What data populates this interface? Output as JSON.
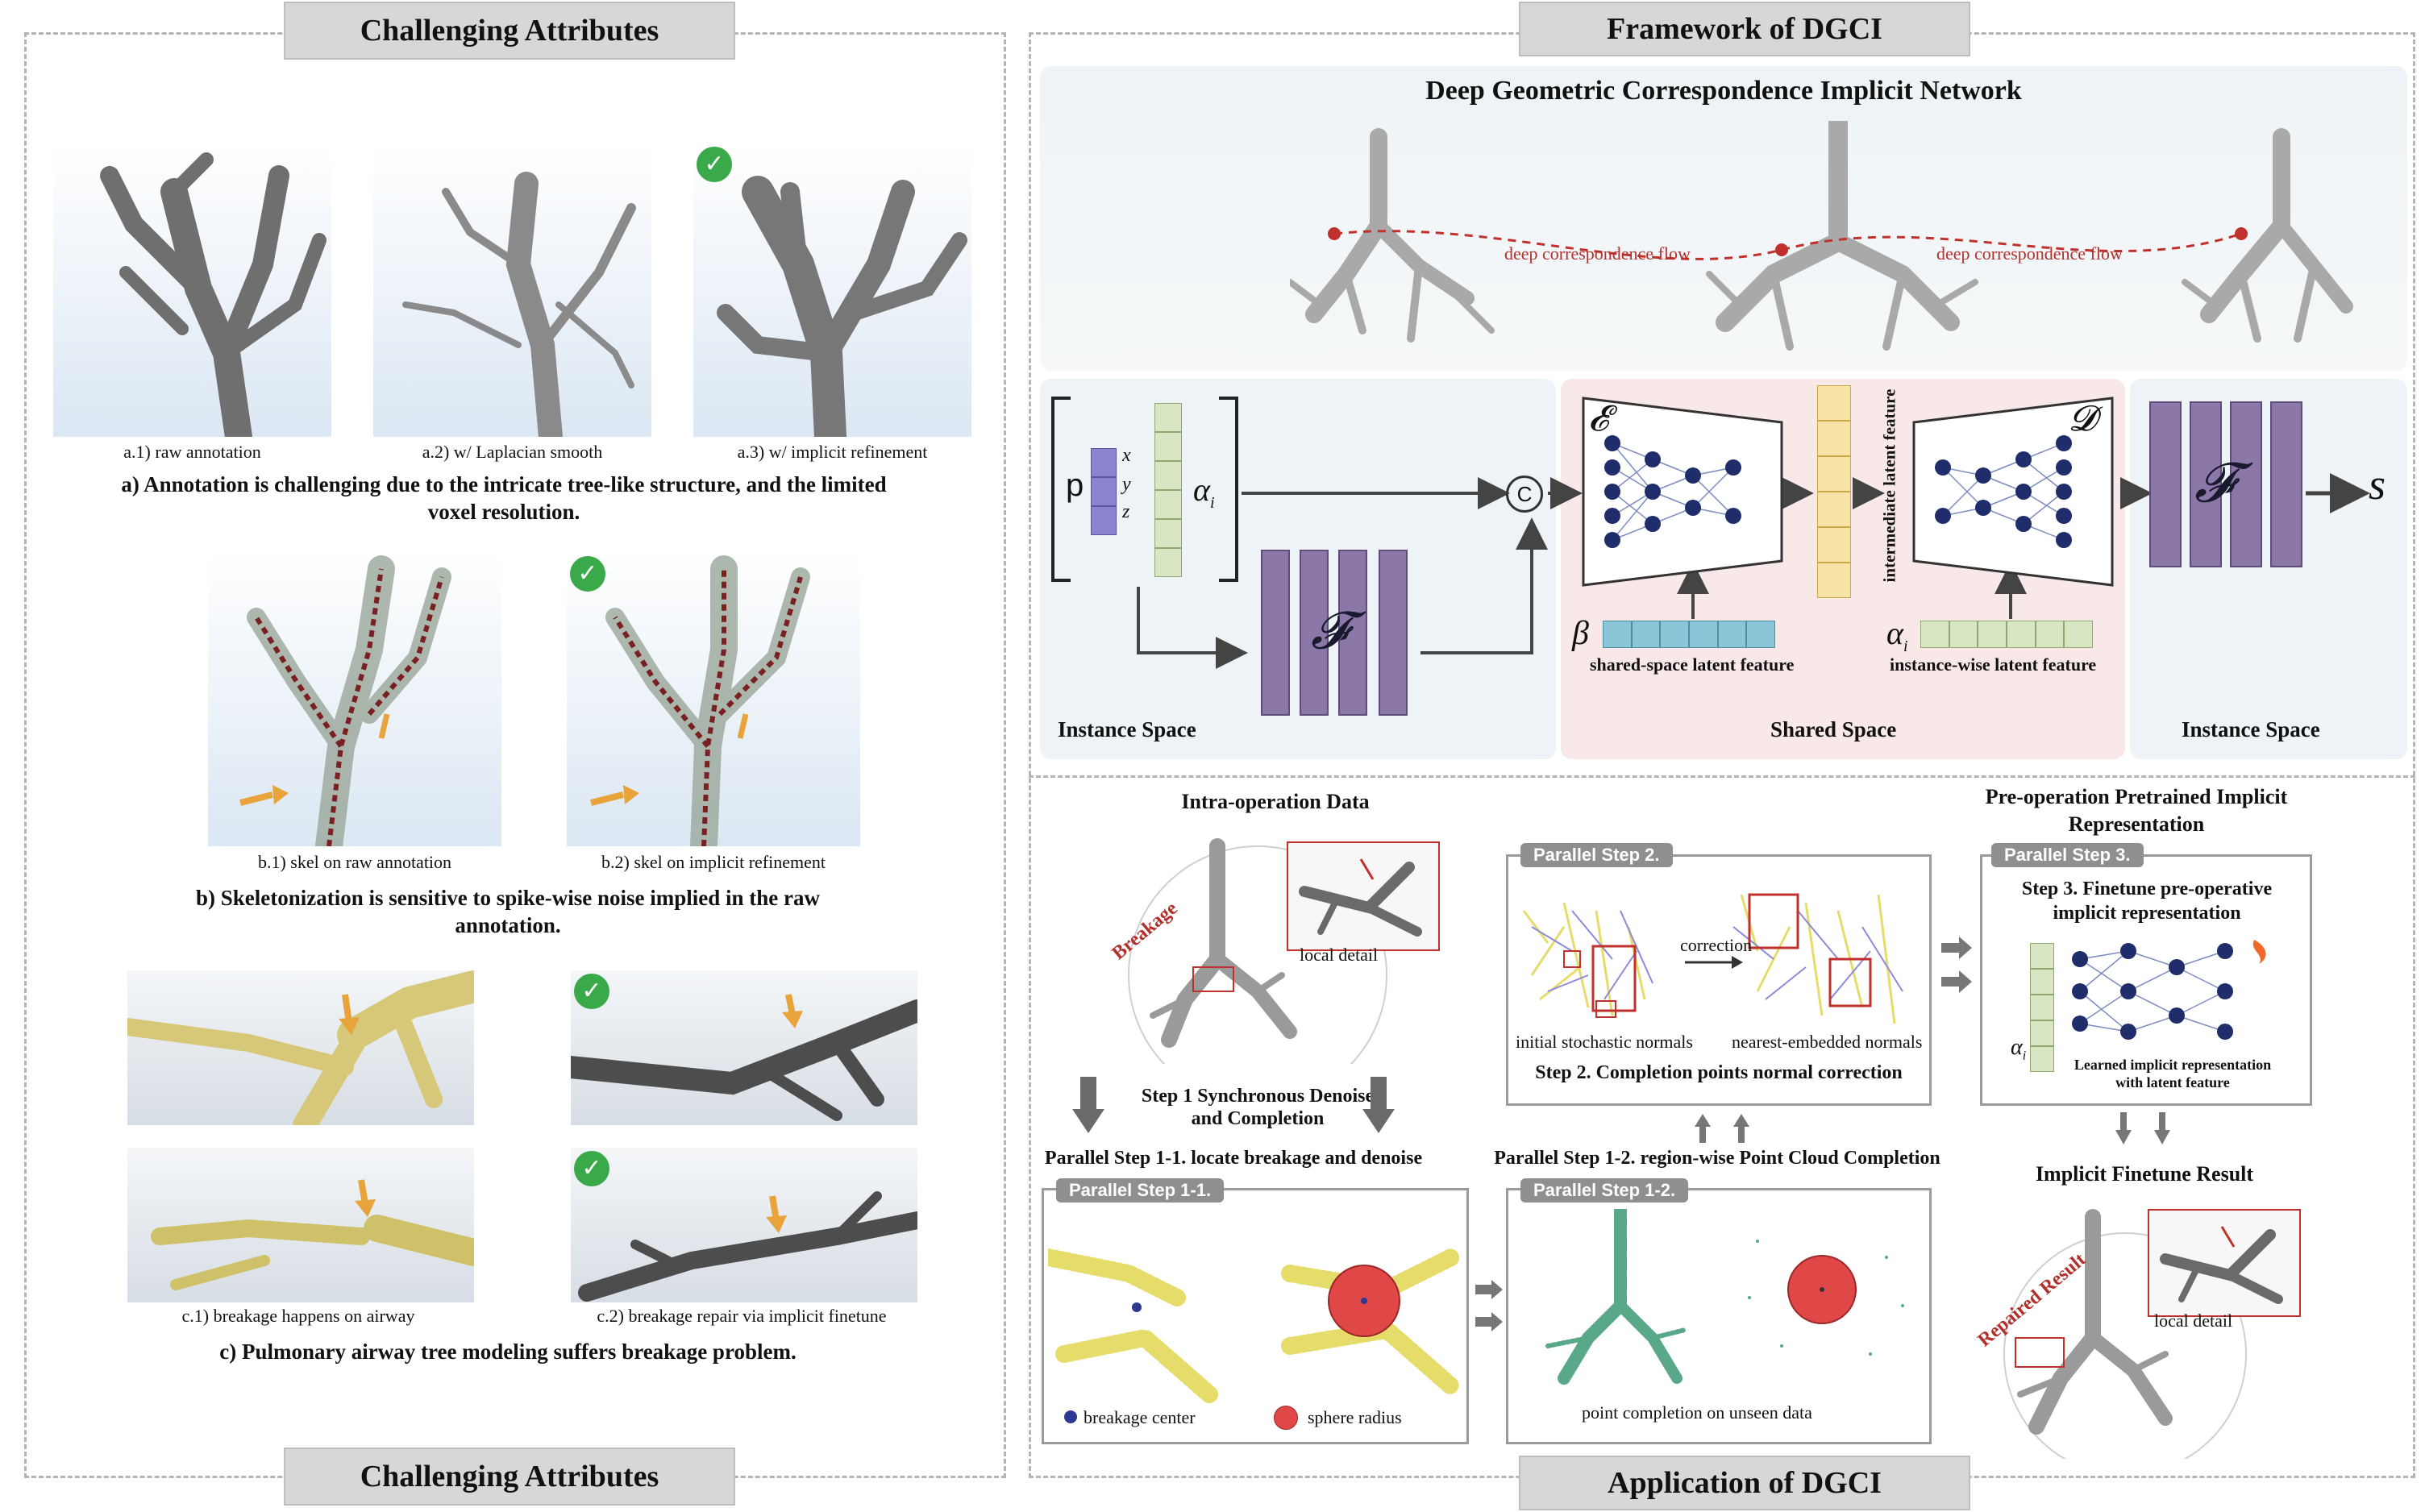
{
  "left": {
    "banner_top": "Challenging Attributes",
    "banner_bottom": "Challenging Attributes",
    "a": {
      "cap1": "a.1) raw annotation",
      "cap2": "a.2) w/ Laplacian smooth",
      "cap3": "a.3) w/ implicit refinement",
      "summary": "a) Annotation is challenging due to the intricate tree-like structure, and the limited voxel resolution."
    },
    "b": {
      "cap1": "b.1) skel on raw annotation",
      "cap2": "b.2) skel on implicit refinement",
      "summary": "b) Skeletonization is sensitive to spike-wise noise implied in the raw annotation."
    },
    "c": {
      "cap1": "c.1) breakage happens on airway",
      "cap2": "c.2) breakage repair via implicit finetune",
      "summary": "c) Pulmonary airway tree modeling suffers breakage problem."
    }
  },
  "framework": {
    "banner": "Framework of DGCI",
    "title": "Deep Geometric Correspondence Implicit Network",
    "flow_left": "deep correspondence flow",
    "flow_right": "deep correspondence flow",
    "p": "p",
    "x": "x",
    "y": "y",
    "z": "z",
    "alpha": "α",
    "alpha_sub": "i",
    "concat": "C",
    "F": "𝓕",
    "E": "𝓔",
    "D": "𝓓",
    "s": "s",
    "beta": "β",
    "shared_latent": "shared-space latent feature",
    "instance_latent": "instance-wise latent feature",
    "intermediate": "intermediate latent feature",
    "instance_space_left": "Instance Space",
    "shared_space": "Shared Space",
    "instance_space_right": "Instance Space"
  },
  "application": {
    "banner": "Application of DGCI",
    "intra_title": "Intra-operation Data",
    "breakage": "Breakage",
    "local_detail": "local detail",
    "step1": "Step 1 Synchronous Denoise and Completion",
    "ps11_title": "Parallel Step 1-1. locate breakage and denoise",
    "ps11_tag": "Parallel Step 1-1.",
    "breakage_center": "breakage center",
    "sphere_radius": "sphere radius",
    "ps2_tag": "Parallel Step 2.",
    "correction": "correction",
    "initial_normals": "initial stochastic normals",
    "nearest_normals": "nearest-embedded normals",
    "step2": "Step 2. Completion points normal correction",
    "ps12_title": "Parallel Step 1-2. region-wise Point Cloud Completion",
    "ps12_tag": "Parallel Step 1-2.",
    "point_completion": "point completion on unseen data",
    "pre_title": "Pre-operation Pretrained Implicit Representation",
    "ps3_tag": "Parallel Step 3.",
    "step3": "Step 3. Finetune pre-operative implicit representation",
    "learned": "Learned implicit representation with latent feature",
    "alpha": "α",
    "alpha_sub": "i",
    "finetune_result": "Implicit Finetune Result",
    "repaired": "Repaired Result",
    "local_detail2": "local detail"
  }
}
